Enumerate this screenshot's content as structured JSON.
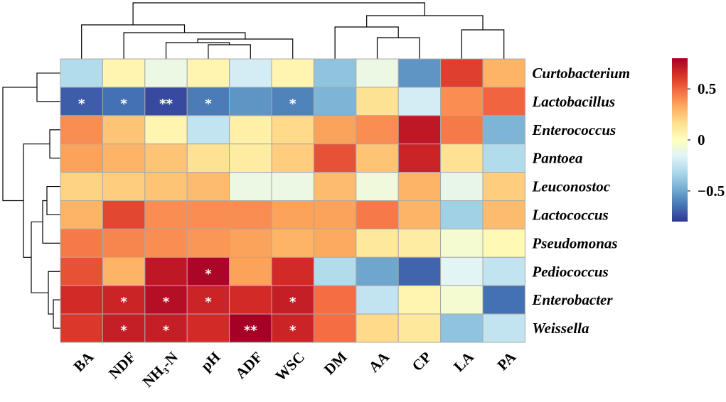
{
  "chart_data": {
    "type": "heatmap",
    "title": "",
    "rows": [
      "Curtobacterium",
      "Lactobacillus",
      "Enterococcus",
      "Pantoea",
      "Leuconostoc",
      "Lactococcus",
      "Pseudomonas",
      "Pediococcus",
      "Enterobacter",
      "Weissella"
    ],
    "columns": [
      "BA",
      "NDF",
      "NH₃-N",
      "pH",
      "ADF",
      "WSC",
      "DM",
      "AA",
      "CP",
      "LA",
      "PA"
    ],
    "values": [
      [
        -0.3,
        0.05,
        -0.1,
        0.05,
        -0.2,
        0.05,
        -0.4,
        -0.1,
        -0.55,
        0.6,
        0.3
      ],
      [
        -0.7,
        -0.65,
        -0.75,
        -0.62,
        -0.55,
        -0.6,
        -0.45,
        0.15,
        -0.2,
        0.4,
        0.5
      ],
      [
        0.4,
        0.25,
        0.05,
        -0.25,
        0.08,
        0.18,
        0.35,
        0.4,
        0.72,
        0.45,
        -0.45
      ],
      [
        0.35,
        0.3,
        0.25,
        0.15,
        0.1,
        0.22,
        0.55,
        0.25,
        0.68,
        0.15,
        -0.3
      ],
      [
        0.2,
        0.22,
        0.25,
        0.28,
        -0.1,
        -0.1,
        0.28,
        -0.08,
        0.3,
        -0.12,
        0.22
      ],
      [
        0.3,
        0.58,
        0.4,
        0.4,
        0.4,
        0.35,
        0.35,
        0.45,
        0.3,
        -0.35,
        0.28
      ],
      [
        0.45,
        0.42,
        0.4,
        0.38,
        0.35,
        0.3,
        0.33,
        0.12,
        0.1,
        -0.05,
        0.03
      ],
      [
        0.55,
        0.3,
        0.72,
        0.78,
        0.35,
        0.66,
        -0.3,
        -0.5,
        -0.68,
        -0.15,
        -0.25
      ],
      [
        0.66,
        0.68,
        0.75,
        0.68,
        0.66,
        0.7,
        0.48,
        -0.25,
        0.05,
        -0.05,
        -0.65
      ],
      [
        0.62,
        0.7,
        0.7,
        0.66,
        0.8,
        0.68,
        0.48,
        0.18,
        0.12,
        -0.4,
        -0.25
      ]
    ],
    "significance": [
      [
        "",
        "",
        "",
        "",
        "",
        "",
        "",
        "",
        "",
        "",
        ""
      ],
      [
        "*",
        "*",
        "**",
        "*",
        "",
        "*",
        "",
        "",
        "",
        "",
        ""
      ],
      [
        "",
        "",
        "",
        "",
        "",
        "",
        "",
        "",
        "",
        "",
        ""
      ],
      [
        "",
        "",
        "",
        "",
        "",
        "",
        "",
        "",
        "",
        "",
        ""
      ],
      [
        "",
        "",
        "",
        "",
        "",
        "",
        "",
        "",
        "",
        "",
        ""
      ],
      [
        "",
        "",
        "",
        "",
        "",
        "",
        "",
        "",
        "",
        "",
        ""
      ],
      [
        "",
        "",
        "",
        "",
        "",
        "",
        "",
        "",
        "",
        "",
        ""
      ],
      [
        "",
        "",
        "",
        "*",
        "",
        "",
        "",
        "",
        "",
        "",
        ""
      ],
      [
        "",
        "*",
        "*",
        "*",
        "",
        "*",
        "",
        "",
        "",
        "",
        ""
      ],
      [
        "",
        "*",
        "*",
        "",
        "**",
        "*",
        "",
        "",
        "",
        "",
        ""
      ]
    ],
    "colorbar": {
      "min": -0.8,
      "max": 0.8,
      "ticks": [
        0.5,
        0,
        -0.5
      ],
      "tick_labels": [
        "0.5",
        "0",
        "−0.5"
      ],
      "colors": [
        "#313695",
        "#4575b4",
        "#74add1",
        "#abd9e9",
        "#e0f3f8",
        "#ffffbf",
        "#fee090",
        "#fdae61",
        "#f46d43",
        "#d73027",
        "#a50026"
      ]
    },
    "clustering": {
      "column_order_groups": "BA, NDF, NH3-N, pH, ADF, WSC | DM, AA, CP, LA, PA",
      "dendrograms": [
        "top columns",
        "left rows"
      ]
    }
  }
}
